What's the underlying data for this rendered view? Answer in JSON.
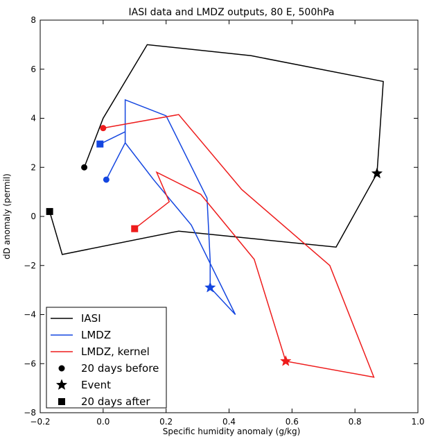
{
  "chart_data": {
    "type": "line",
    "title": "IASI data and LMDZ outputs, 80 E, 500hPa",
    "xlabel": "Specific humidity anomaly (g/kg)",
    "ylabel": "dD anomaly (permil)",
    "xlim": [
      -0.2,
      1.0
    ],
    "ylim": [
      -8,
      8
    ],
    "x_ticks": [
      -0.2,
      0.0,
      0.2,
      0.4,
      0.6,
      0.8,
      1.0
    ],
    "x_tick_labels": [
      "−0.2",
      "0.0",
      "0.2",
      "0.4",
      "0.6",
      "0.8",
      "1.0"
    ],
    "y_ticks": [
      -8,
      -6,
      -4,
      -2,
      0,
      2,
      4,
      6,
      8
    ],
    "y_tick_labels": [
      "−8",
      "−6",
      "−4",
      "−2",
      "0",
      "2",
      "4",
      "6",
      "8"
    ],
    "grid": false,
    "legend_position": "bottom-left",
    "series": [
      {
        "name": "IASI",
        "color": "#000000",
        "x": [
          -0.06,
          0.0,
          0.14,
          0.47,
          0.89,
          0.87,
          0.74,
          0.24,
          -0.13,
          -0.17
        ],
        "y": [
          2.0,
          4.0,
          7.0,
          6.55,
          5.5,
          1.75,
          -1.25,
          -0.6,
          -1.55,
          0.2
        ],
        "start": {
          "x": -0.06,
          "y": 2.0
        },
        "event": {
          "x": 0.87,
          "y": 1.75
        },
        "end": {
          "x": -0.17,
          "y": 0.2
        }
      },
      {
        "name": "LMDZ",
        "color": "#1446e0",
        "x": [
          0.01,
          0.07,
          0.07,
          0.2,
          0.33,
          0.34,
          0.34,
          0.42,
          0.28,
          0.16,
          0.07,
          0.07,
          -0.01
        ],
        "y": [
          1.5,
          3.0,
          4.75,
          4.1,
          0.75,
          -1.8,
          -2.9,
          -4.0,
          -0.35,
          1.5,
          3.0,
          3.45,
          2.95
        ],
        "start": {
          "x": 0.01,
          "y": 1.5
        },
        "event": {
          "x": 0.34,
          "y": -2.9
        },
        "end": {
          "x": -0.01,
          "y": 2.95
        }
      },
      {
        "name": "LMDZ, kernel",
        "color": "#ee1c1c",
        "x": [
          0.0,
          0.24,
          0.44,
          0.72,
          0.86,
          0.58,
          0.48,
          0.31,
          0.17,
          0.21,
          0.1
        ],
        "y": [
          3.6,
          4.15,
          1.1,
          -2.0,
          -6.55,
          -5.9,
          -1.75,
          0.9,
          1.8,
          0.6,
          -0.5
        ],
        "start": {
          "x": 0.0,
          "y": 3.6
        },
        "event": {
          "x": 0.58,
          "y": -5.9
        },
        "end": {
          "x": 0.1,
          "y": -0.5
        }
      }
    ],
    "marker_legend": [
      {
        "marker": "circle",
        "label": "20 days before"
      },
      {
        "marker": "star",
        "label": "Event"
      },
      {
        "marker": "square",
        "label": "20 days after"
      }
    ]
  }
}
